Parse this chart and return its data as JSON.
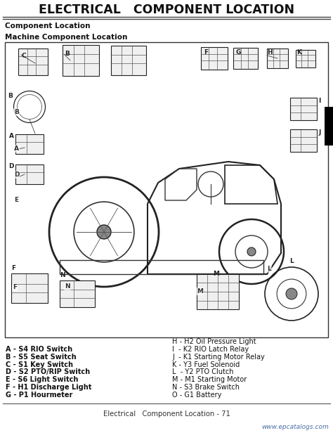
{
  "title": "ELECTRICAL   COMPONENT LOCATION",
  "subtitle1": "Component Location",
  "subtitle2": "Machine Component Location",
  "footer_center": "Electrical   Component Location - 71",
  "footer_right": "www.epcatalogs.com",
  "legend_left": [
    "A - S4 RIO Switch",
    "B - S5 Seat Switch",
    "C - S1 Key Switch",
    "D - S2 PTO/RIP Switch",
    "E - S6 Light Switch",
    "F - H1 Discharge Light",
    "G - P1 Hourmeter"
  ],
  "legend_right": [
    "H - H2 Oil Pressure Light",
    "I  - K2 RIO Latch Relay",
    "J  - K1 Starting Motor Relay",
    "K - Y3 Fuel Solenoid",
    "L  - Y2 PTO Clutch",
    "M - M1 Starting Motor",
    "N - S3 Brake Switch",
    "O - G1 Battery"
  ],
  "bg_color": "#ffffff",
  "title_color": "#111111",
  "text_color": "#111111",
  "footer_text_color": "#333333",
  "footer_url_color": "#4a6fa5",
  "line_color": "#333333",
  "diagram_bg": "#ffffff",
  "diagram_border": "#333333",
  "black_tab_color": "#000000"
}
